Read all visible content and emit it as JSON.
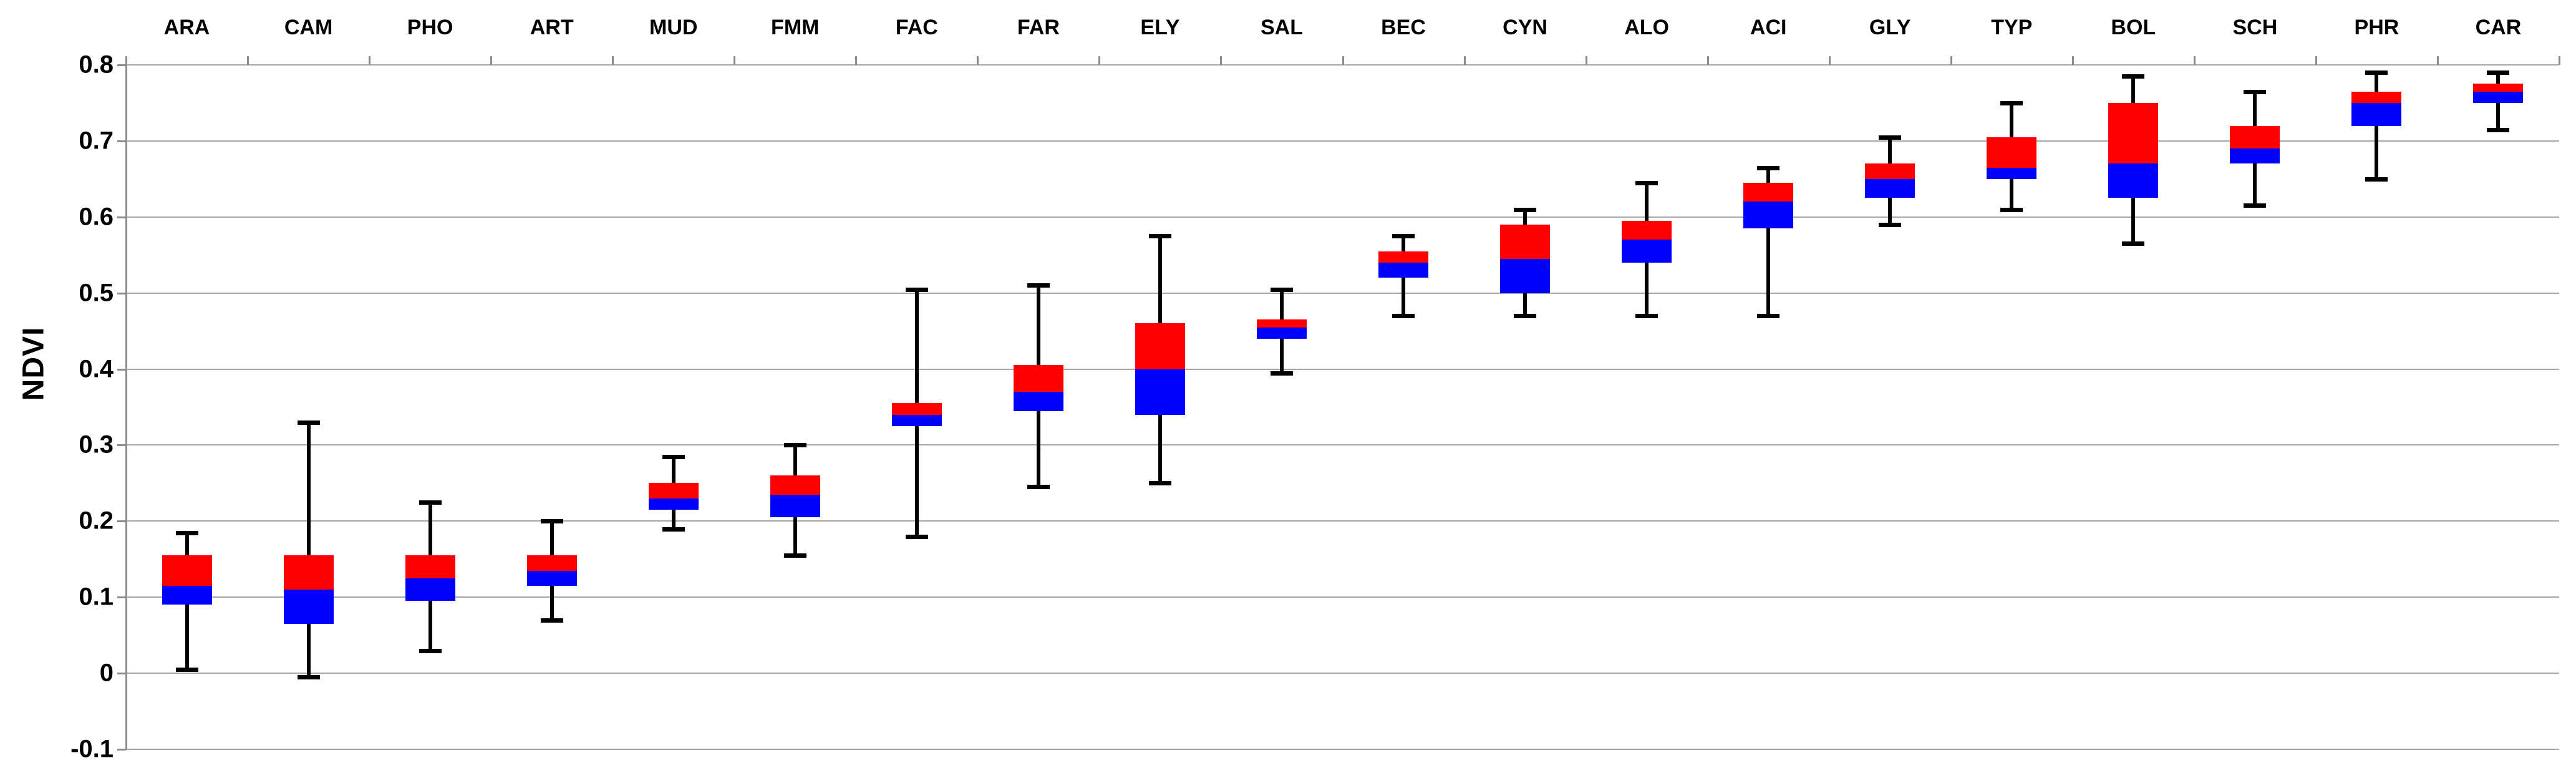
{
  "figure": {
    "background": "#ffffff"
  },
  "chart_data": {
    "type": "box",
    "title": "",
    "xlabel": "",
    "ylabel": "NDVI",
    "ylim": [
      -0.1,
      0.8
    ],
    "grid": true,
    "legend_position": "none",
    "yticks": [
      {
        "label": "0.8",
        "value": 0.8
      },
      {
        "label": "0.7",
        "value": 0.7
      },
      {
        "label": "0.6",
        "value": 0.6
      },
      {
        "label": "0.5",
        "value": 0.5
      },
      {
        "label": "0.4",
        "value": 0.4
      },
      {
        "label": "0.3",
        "value": 0.3
      },
      {
        "label": "0.2",
        "value": 0.2
      },
      {
        "label": "0.1",
        "value": 0.1
      },
      {
        "label": "0",
        "value": 0.0
      },
      {
        "label": "-0.1",
        "value": -0.1
      }
    ],
    "categories": [
      "ARA",
      "CAM",
      "PHO",
      "ART",
      "MUD",
      "FMM",
      "FAC",
      "FAR",
      "ELY",
      "SAL",
      "BEC",
      "CYN",
      "ALO",
      "ACI",
      "GLY",
      "TYP",
      "BOL",
      "SCH",
      "PHR",
      "CAR"
    ],
    "series": [
      {
        "label": "ARA",
        "whisker_low": 0.005,
        "q1": 0.09,
        "median": 0.115,
        "q3": 0.155,
        "whisker_high": 0.185
      },
      {
        "label": "CAM",
        "whisker_low": -0.005,
        "q1": 0.065,
        "median": 0.11,
        "q3": 0.155,
        "whisker_high": 0.33
      },
      {
        "label": "PHO",
        "whisker_low": 0.03,
        "q1": 0.095,
        "median": 0.125,
        "q3": 0.155,
        "whisker_high": 0.225
      },
      {
        "label": "ART",
        "whisker_low": 0.07,
        "q1": 0.115,
        "median": 0.135,
        "q3": 0.155,
        "whisker_high": 0.2
      },
      {
        "label": "MUD",
        "whisker_low": 0.19,
        "q1": 0.215,
        "median": 0.23,
        "q3": 0.25,
        "whisker_high": 0.285
      },
      {
        "label": "FMM",
        "whisker_low": 0.155,
        "q1": 0.205,
        "median": 0.235,
        "q3": 0.26,
        "whisker_high": 0.3
      },
      {
        "label": "FAC",
        "whisker_low": 0.18,
        "q1": 0.325,
        "median": 0.34,
        "q3": 0.355,
        "whisker_high": 0.505
      },
      {
        "label": "FAR",
        "whisker_low": 0.245,
        "q1": 0.345,
        "median": 0.37,
        "q3": 0.405,
        "whisker_high": 0.51
      },
      {
        "label": "ELY",
        "whisker_low": 0.25,
        "q1": 0.34,
        "median": 0.4,
        "q3": 0.46,
        "whisker_high": 0.575
      },
      {
        "label": "SAL",
        "whisker_low": 0.395,
        "q1": 0.44,
        "median": 0.455,
        "q3": 0.465,
        "whisker_high": 0.505
      },
      {
        "label": "BEC",
        "whisker_low": 0.47,
        "q1": 0.52,
        "median": 0.54,
        "q3": 0.555,
        "whisker_high": 0.575
      },
      {
        "label": "CYN",
        "whisker_low": 0.47,
        "q1": 0.5,
        "median": 0.545,
        "q3": 0.59,
        "whisker_high": 0.61
      },
      {
        "label": "ALO",
        "whisker_low": 0.47,
        "q1": 0.54,
        "median": 0.57,
        "q3": 0.595,
        "whisker_high": 0.645
      },
      {
        "label": "ACI",
        "whisker_low": 0.47,
        "q1": 0.585,
        "median": 0.62,
        "q3": 0.645,
        "whisker_high": 0.665
      },
      {
        "label": "GLY",
        "whisker_low": 0.59,
        "q1": 0.625,
        "median": 0.65,
        "q3": 0.67,
        "whisker_high": 0.705
      },
      {
        "label": "TYP",
        "whisker_low": 0.61,
        "q1": 0.65,
        "median": 0.665,
        "q3": 0.705,
        "whisker_high": 0.75
      },
      {
        "label": "BOL",
        "whisker_low": 0.565,
        "q1": 0.625,
        "median": 0.67,
        "q3": 0.75,
        "whisker_high": 0.785
      },
      {
        "label": "SCH",
        "whisker_low": 0.615,
        "q1": 0.67,
        "median": 0.69,
        "q3": 0.72,
        "whisker_high": 0.765
      },
      {
        "label": "PHR",
        "whisker_low": 0.65,
        "q1": 0.72,
        "median": 0.75,
        "q3": 0.765,
        "whisker_high": 0.79
      },
      {
        "label": "CAR",
        "whisker_low": 0.715,
        "q1": 0.75,
        "median": 0.765,
        "q3": 0.775,
        "whisker_high": 0.79
      }
    ],
    "colors": {
      "upper_box": "#ff0000",
      "lower_box": "#0000ff",
      "whisker": "#000000",
      "gridline": "#a6a6a6",
      "axis": "#8c8c8c",
      "text": "#000000",
      "background": "#ffffff"
    }
  }
}
